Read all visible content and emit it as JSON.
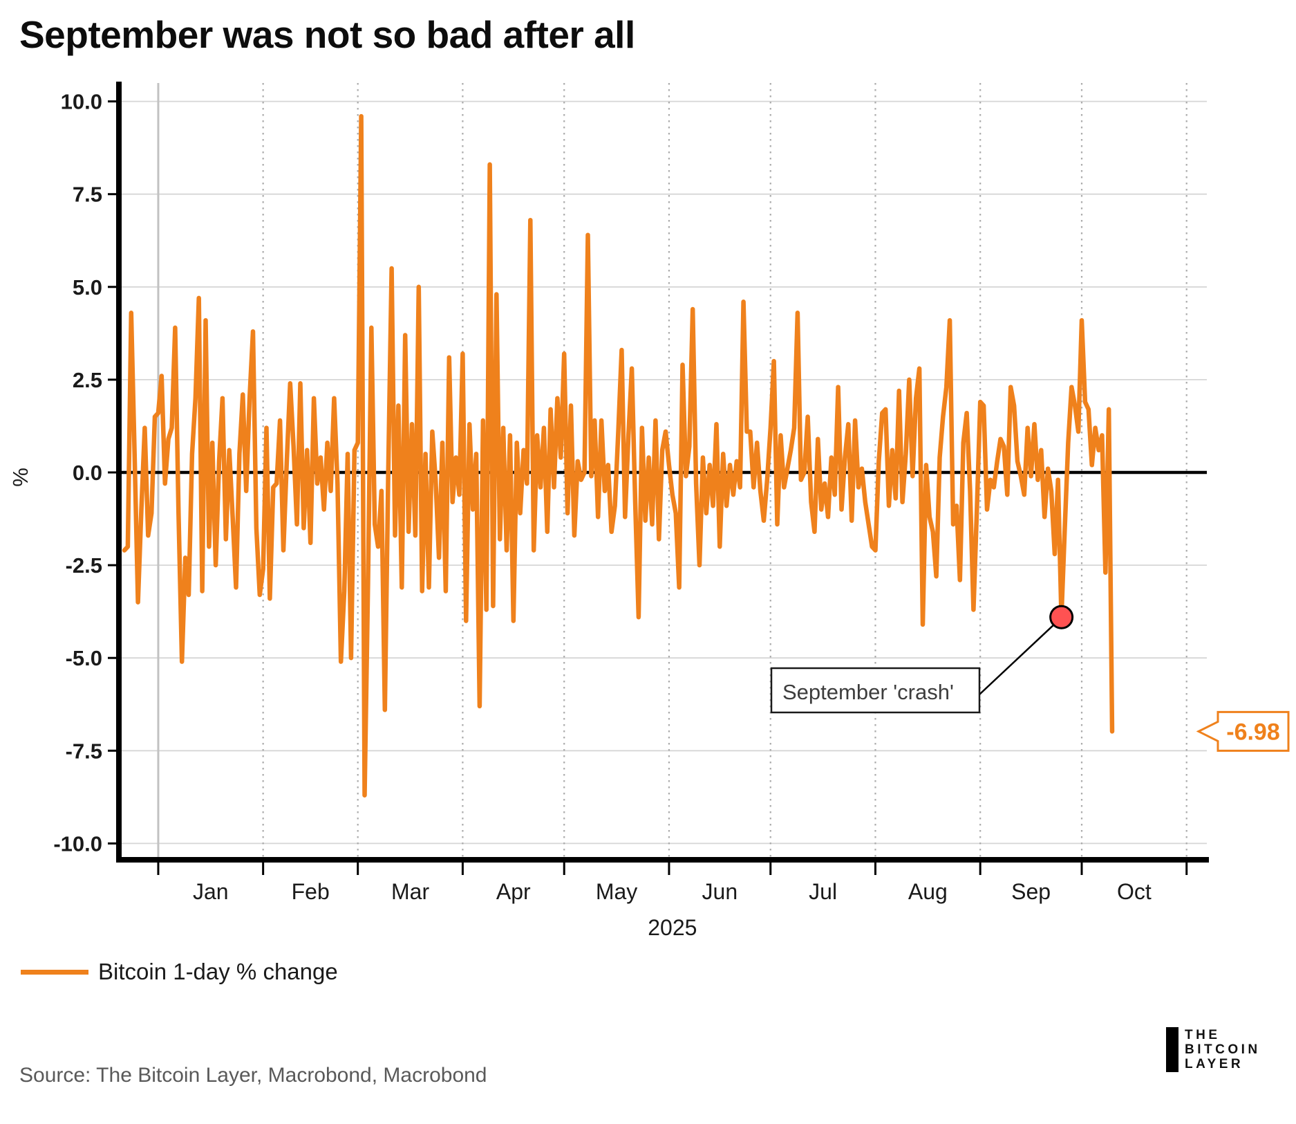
{
  "title": "September was not so bad after all",
  "chart_data": {
    "type": "line",
    "title": "September was not so bad after all",
    "ylabel": "%",
    "xlabel": "2025",
    "ylim": [
      -10.4,
      10.4
    ],
    "grid": true,
    "yticks": [
      10.0,
      7.5,
      5.0,
      2.5,
      0.0,
      -2.5,
      -5.0,
      -7.5,
      -10.0
    ],
    "ytick_labels": [
      "10.0",
      "7.5",
      "5.0",
      "2.5",
      "0.0",
      "-2.5",
      "-5.0",
      "-7.5",
      "-10.0"
    ],
    "month_labels": [
      "Jan",
      "Feb",
      "Mar",
      "Apr",
      "May",
      "Jun",
      "Jul",
      "Aug",
      "Sep",
      "Oct"
    ],
    "year_label": "2025",
    "series": [
      {
        "name": "Bitcoin 1-day % change",
        "color": "#EF811C",
        "start_date": "2024-12-22",
        "frequency": "daily",
        "values": [
          -2.1,
          -2.0,
          4.3,
          0.5,
          -3.5,
          -1.0,
          1.2,
          -1.7,
          -1.1,
          1.5,
          1.6,
          2.6,
          -0.3,
          0.9,
          1.2,
          3.9,
          -1.1,
          -5.1,
          -2.3,
          -3.3,
          0.5,
          2.0,
          4.7,
          -3.2,
          4.1,
          -2.0,
          0.8,
          -2.5,
          0.3,
          2.0,
          -1.8,
          0.6,
          -1.2,
          -3.1,
          0.5,
          2.1,
          -0.5,
          2.0,
          3.8,
          -1.5,
          -3.3,
          -2.6,
          1.2,
          -3.4,
          -0.4,
          -0.3,
          1.4,
          -2.1,
          0.3,
          2.4,
          0.7,
          -1.4,
          2.4,
          -1.5,
          0.6,
          -1.9,
          2.0,
          -0.3,
          0.4,
          -1.0,
          0.8,
          -0.5,
          2.0,
          -0.3,
          -5.1,
          -3.2,
          0.5,
          -5.0,
          0.6,
          0.8,
          9.6,
          -8.7,
          -3.0,
          3.9,
          -1.4,
          -2.0,
          -0.5,
          -6.4,
          0.0,
          5.5,
          -1.7,
          1.8,
          -3.1,
          3.7,
          -1.6,
          1.3,
          -1.7,
          5.0,
          -3.2,
          0.5,
          -3.1,
          1.1,
          -0.2,
          -2.3,
          0.8,
          -3.2,
          3.1,
          -0.8,
          0.4,
          -0.6,
          3.2,
          -4.0,
          1.3,
          -1.0,
          0.5,
          -6.3,
          1.4,
          -3.7,
          8.3,
          -3.6,
          4.8,
          -1.8,
          1.2,
          -2.1,
          1.0,
          -4.0,
          0.8,
          -1.1,
          0.6,
          -0.3,
          6.8,
          -2.1,
          1.0,
          -0.4,
          1.2,
          -1.6,
          1.7,
          -0.4,
          2.0,
          0.4,
          3.2,
          -1.1,
          1.8,
          -1.7,
          0.3,
          -0.2,
          0.0,
          6.4,
          -0.1,
          1.4,
          -1.2,
          1.4,
          -0.5,
          0.2,
          -1.6,
          -0.9,
          1.1,
          3.3,
          -1.2,
          1.0,
          2.8,
          -0.8,
          -3.9,
          1.2,
          -1.3,
          0.4,
          -1.4,
          1.4,
          -1.8,
          0.6,
          1.1,
          0.2,
          -0.6,
          -1.1,
          -3.1,
          2.9,
          -0.1,
          0.7,
          4.4,
          -0.3,
          -2.5,
          0.4,
          -1.1,
          0.2,
          -0.9,
          1.3,
          -2.0,
          0.5,
          -0.9,
          0.2,
          -0.6,
          0.3,
          -0.4,
          4.6,
          1.1,
          1.1,
          -0.4,
          0.8,
          -0.5,
          -1.3,
          -0.2,
          1.2,
          3.0,
          -1.4,
          1.0,
          -0.4,
          0.1,
          0.6,
          1.2,
          4.3,
          -0.2,
          0.0,
          1.5,
          -0.8,
          -1.6,
          0.9,
          -1.0,
          -0.3,
          -1.2,
          0.4,
          -0.6,
          2.3,
          -1.0,
          0.4,
          1.3,
          -1.3,
          1.4,
          -0.4,
          0.1,
          -0.8,
          -1.4,
          -2.0,
          -2.1,
          0.3,
          1.6,
          1.7,
          -0.9,
          0.6,
          -0.7,
          2.2,
          -0.8,
          0.5,
          2.5,
          -0.1,
          2.0,
          2.8,
          -4.1,
          0.2,
          -1.2,
          -1.6,
          -2.8,
          0.4,
          1.5,
          2.3,
          4.1,
          -1.4,
          -0.9,
          -2.9,
          0.8,
          1.6,
          -0.5,
          -3.7,
          -1.0,
          1.9,
          1.8,
          -1.0,
          -0.2,
          -0.4,
          0.3,
          0.9,
          0.7,
          -0.6,
          2.3,
          1.8,
          0.3,
          -0.1,
          -0.6,
          1.2,
          -0.1,
          1.3,
          -0.2,
          0.6,
          -1.2,
          0.1,
          -0.5,
          -2.2,
          -0.2,
          -3.9,
          -1.5,
          0.8,
          2.3,
          1.8,
          1.1,
          4.1,
          1.9,
          1.7,
          0.2,
          1.2,
          0.6,
          1.0,
          -2.7,
          1.7,
          -6.98
        ]
      }
    ],
    "annotations": {
      "crash_label": "September 'crash'",
      "crash_point": {
        "date": "2025-09-25",
        "value": -3.9
      },
      "last_value_label": "-6.98",
      "last_point": {
        "date": "2025-10-10",
        "value": -6.98
      }
    },
    "legend_position": "bottom-left"
  },
  "legend": {
    "label": "Bitcoin 1-day % change",
    "swatch_color": "#EF811C"
  },
  "source": "Source: The Bitcoin Layer, Macrobond, Macrobond",
  "logo": {
    "line1": "THE",
    "line2": "BITCOIN",
    "line3": "LAYER"
  },
  "colors": {
    "accent_orange": "#EF811C",
    "crash_dot_red": "#FF5252",
    "grid_gray": "#d6d6d6",
    "dotted_gray": "#ababab",
    "jan_line_gray": "#c2c2c2",
    "axis_black": "#000000",
    "text_dark": "#1a1a1a",
    "annotation_text": "#3d3d3d",
    "source_gray": "#595959"
  }
}
